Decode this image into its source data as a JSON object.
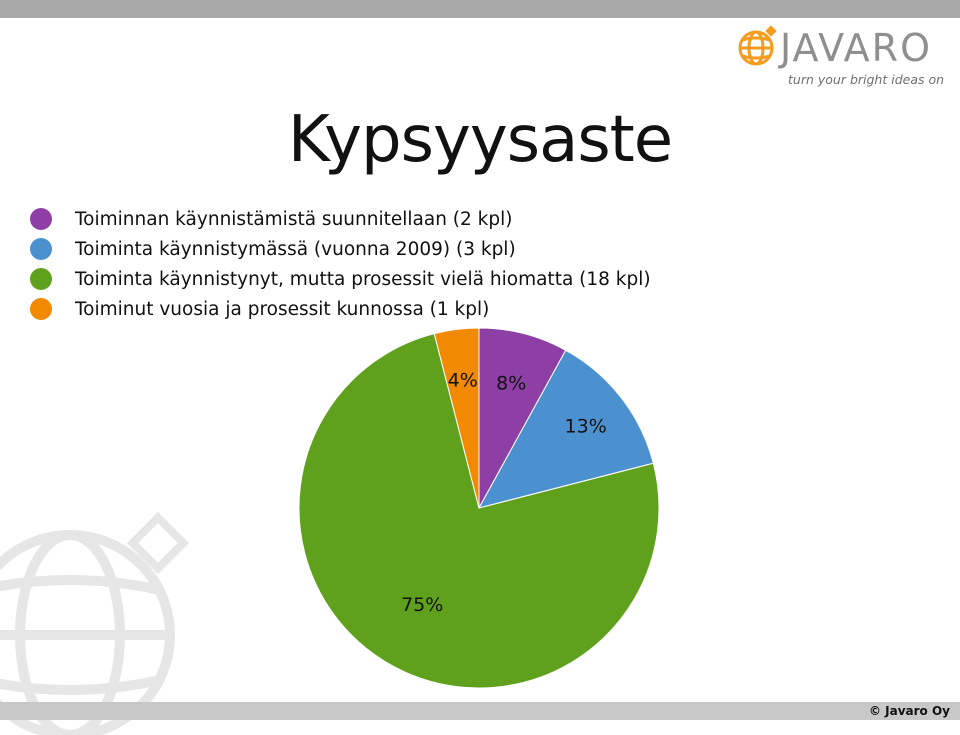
{
  "slide": {
    "title": "Kypsyysaste",
    "logo": {
      "wordmark": "JAVARO",
      "tagline": "turn your bright ideas on",
      "globe_color": "#f39c1f"
    },
    "copyright": "© Javaro Oy"
  },
  "legend": [
    {
      "label": "Toiminnan käynnistämistä suunnitellaan (2 kpl)",
      "color": "#8e3fa5"
    },
    {
      "label": "Toiminta käynnistymässä (vuonna 2009) (3 kpl)",
      "color": "#4b91cf"
    },
    {
      "label": "Toiminta käynnistynyt, mutta prosessit vielä hiomatta (18 kpl)",
      "color": "#5fa11c"
    },
    {
      "label": "Toiminut vuosia ja prosessit kunnossa (1 kpl)",
      "color": "#f18a00"
    }
  ],
  "chart_data": {
    "type": "pie",
    "title": "Kypsyysaste",
    "slices": [
      {
        "label": "Toiminnan käynnistämistä suunnitellaan (2 kpl)",
        "count": 2,
        "value": 8,
        "display": "8%",
        "color": "#8e3fa5"
      },
      {
        "label": "Toiminta käynnistymässä (vuonna 2009) (3 kpl)",
        "count": 3,
        "value": 13,
        "display": "13%",
        "color": "#4b91cf"
      },
      {
        "label": "Toiminta käynnistynyt, mutta prosessit vielä hiomatta (18 kpl)",
        "count": 18,
        "value": 75,
        "display": "75%",
        "color": "#5fa11c"
      },
      {
        "label": "Toiminut vuosia ja prosessit kunnossa (1 kpl)",
        "count": 1,
        "value": 4,
        "display": "4%",
        "color": "#f18a00"
      }
    ],
    "start": "12 o'clock",
    "direction": "clockwise",
    "legend_position": "top-left"
  }
}
